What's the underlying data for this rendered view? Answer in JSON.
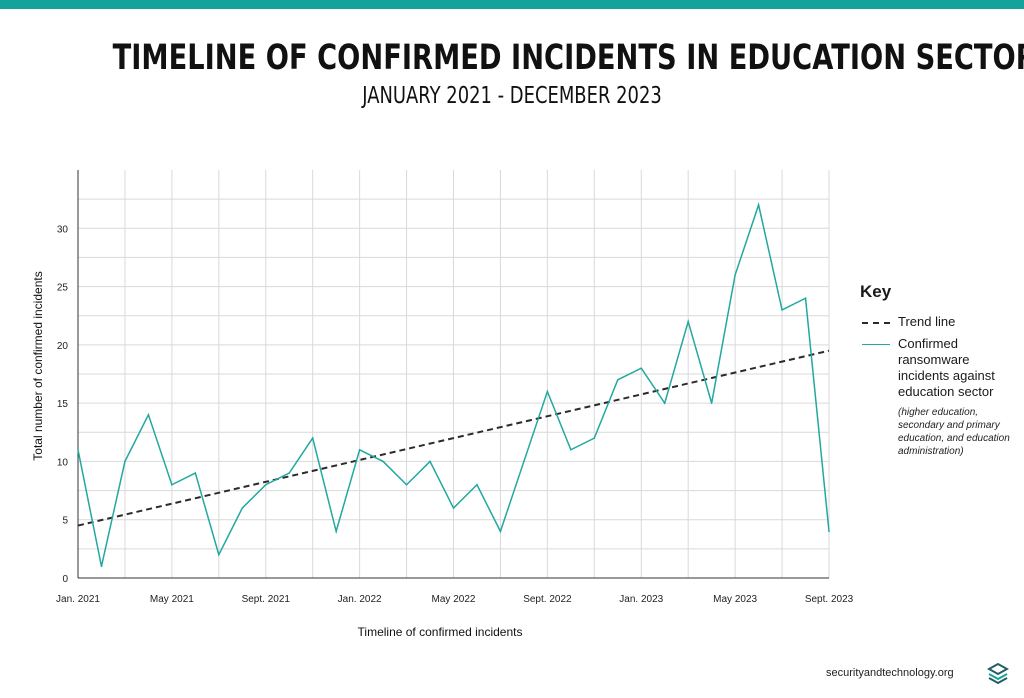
{
  "colors": {
    "accent": "#14a39a",
    "series": "#21a89f",
    "trend": "#2b2b2b"
  },
  "header": {
    "title": "TIMELINE OF CONFIRMED INCIDENTS IN EDUCATION SECTOR",
    "subtitle": "JANUARY 2021 - DECEMBER 2023"
  },
  "key": {
    "title": "Key",
    "trend_label": "Trend line",
    "series_label": "Confirmed ransomware incidents against education sector",
    "series_note": "(higher education, secondary and primary education, and education administration)"
  },
  "footer": {
    "site": "securityandtechnology.org",
    "logo_icon": "stacked-chevrons-logo-icon"
  },
  "chart_data": {
    "type": "line",
    "title": "TIMELINE OF CONFIRMED INCIDENTS IN EDUCATION SECTOR",
    "subtitle": "JANUARY 2021 - DECEMBER 2023",
    "xlabel": "Timeline of confirmed incidents",
    "ylabel": "Total number of confirmed incidents",
    "x": [
      "Jan. 2021",
      "Feb. 2021",
      "Mar. 2021",
      "Apr. 2021",
      "May 2021",
      "Jun. 2021",
      "Jul. 2021",
      "Aug. 2021",
      "Sept. 2021",
      "Oct. 2021",
      "Nov. 2021",
      "Dec. 2021",
      "Jan. 2022",
      "Feb. 2022",
      "Mar. 2022",
      "Apr. 2022",
      "May 2022",
      "Jun. 2022",
      "Jul. 2022",
      "Aug. 2022",
      "Sept. 2022",
      "Oct. 2022",
      "Nov. 2022",
      "Dec. 2022",
      "Jan. 2023",
      "Feb. 2023",
      "Mar. 2023",
      "Apr. 2023",
      "May 2023",
      "Jun. 2023",
      "Jul. 2023",
      "Aug. 2023",
      "Sept. 2023"
    ],
    "x_tick_labels": [
      {
        "index": 0,
        "label": "Jan. 2021"
      },
      {
        "index": 4,
        "label": "May 2021"
      },
      {
        "index": 8,
        "label": "Sept. 2021"
      },
      {
        "index": 12,
        "label": "Jan. 2022"
      },
      {
        "index": 16,
        "label": "May 2022"
      },
      {
        "index": 20,
        "label": "Sept. 2022"
      },
      {
        "index": 24,
        "label": "Jan. 2023"
      },
      {
        "index": 28,
        "label": "May 2023"
      },
      {
        "index": 32,
        "label": "Sept. 2023"
      }
    ],
    "y_ticks": [
      0,
      5,
      10,
      15,
      20,
      25,
      30
    ],
    "ylim": [
      0,
      35
    ],
    "grid": true,
    "legend_position": "right",
    "series": [
      {
        "name": "Confirmed ransomware incidents against education sector",
        "values": [
          11,
          1,
          10,
          14,
          8,
          9,
          2,
          6,
          8,
          9,
          12,
          4,
          11,
          10,
          8,
          10,
          6,
          8,
          4,
          10,
          16,
          11,
          12,
          17,
          18,
          15,
          22,
          15,
          26,
          32,
          23,
          24,
          4
        ]
      }
    ],
    "trend_line": {
      "name": "Trend line",
      "start": 4.5,
      "end": 19.5
    }
  }
}
